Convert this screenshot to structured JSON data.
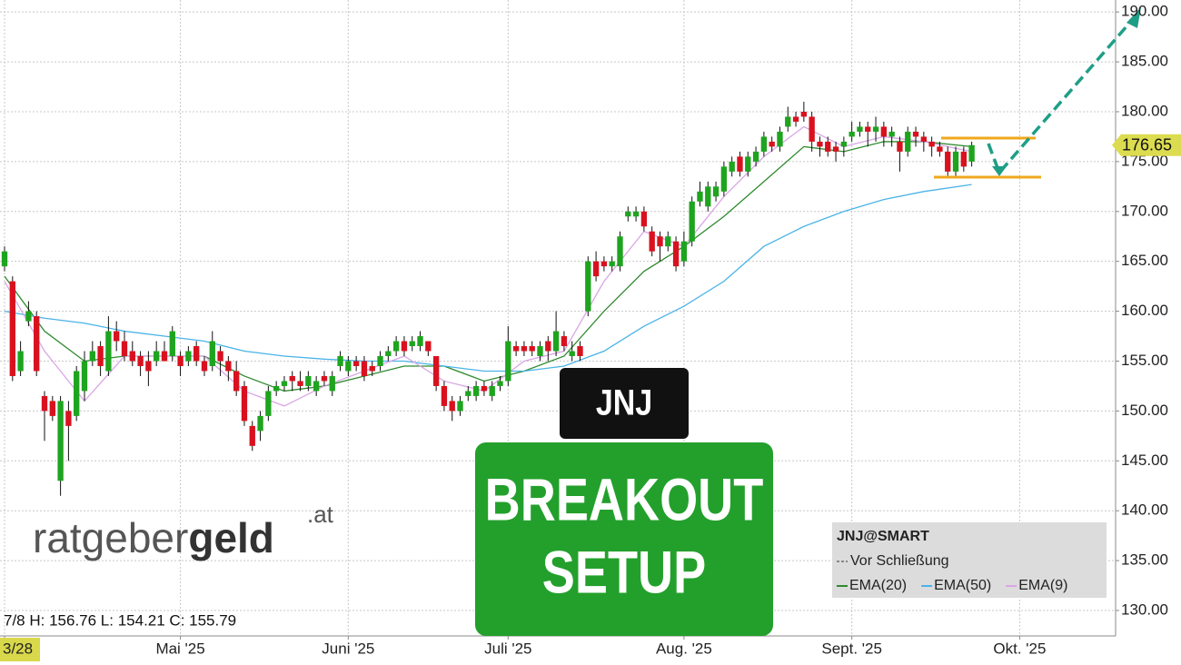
{
  "chart_data": {
    "type": "candlestick",
    "x": [
      0,
      1,
      2,
      3,
      4,
      5,
      6,
      7,
      8,
      9,
      10,
      11,
      12,
      13,
      14,
      15,
      16,
      17,
      18,
      19,
      20,
      21,
      22,
      23,
      24,
      25,
      26,
      27,
      28,
      29,
      30,
      31,
      32,
      33,
      34,
      35,
      36,
      37,
      38,
      39,
      40,
      41,
      42,
      43,
      44,
      45,
      46,
      47,
      48,
      49,
      50,
      51,
      52,
      53,
      54,
      55,
      56,
      57,
      58,
      59,
      60,
      61,
      62,
      63,
      64,
      65,
      66,
      67,
      68,
      69,
      70,
      71,
      72,
      73,
      74,
      75,
      76,
      77,
      78,
      79,
      80,
      81,
      82,
      83,
      84,
      85,
      86,
      87,
      88,
      89,
      90,
      91,
      92,
      93,
      94,
      95,
      96,
      97,
      98,
      99,
      100,
      101,
      102,
      103,
      104,
      105,
      106,
      107,
      108,
      109,
      110,
      111,
      112,
      113,
      114,
      115,
      116,
      117,
      118,
      119,
      120,
      121
    ],
    "open": [
      164.5,
      163,
      154,
      159,
      159.5,
      151.5,
      151,
      143,
      150,
      149.5,
      152,
      155,
      156.5,
      154,
      158,
      157,
      156,
      155.5,
      155,
      155,
      156,
      155.5,
      155.5,
      155,
      156.5,
      155,
      154.5,
      156,
      155,
      154,
      152.5,
      148.5,
      148,
      149.5,
      152,
      152.5,
      153.5,
      153,
      152.5,
      152,
      153.5,
      152,
      154.5,
      154,
      155,
      155,
      154.5,
      154.5,
      155.5,
      156,
      157,
      156.5,
      156.5,
      157,
      155.5,
      152.5,
      151,
      150,
      151.5,
      151.5,
      152.5,
      151.5,
      152.5,
      153,
      156.5,
      156.5,
      156.5,
      155.5,
      157,
      156,
      157.5,
      155.5,
      156.5,
      160,
      165,
      165,
      164.5,
      164.5,
      169.5,
      169.5,
      170,
      168,
      167.5,
      166.5,
      167,
      165,
      167,
      171,
      170.5,
      171.5,
      172,
      174,
      175.5,
      174,
      175,
      176,
      177,
      176.5,
      178.5,
      179.5,
      180,
      179.5,
      177,
      177,
      176.5,
      176.5,
      177.5,
      178,
      178.5,
      178,
      178.5,
      177.5,
      177,
      176,
      178,
      177.5,
      177,
      176.5,
      176,
      174,
      176,
      175
    ],
    "high": [
      166.5,
      163.5,
      157,
      161,
      160,
      152,
      151.5,
      151.5,
      151,
      154.5,
      156,
      157,
      157,
      159.5,
      159,
      158,
      157,
      156,
      156,
      157,
      157,
      158.5,
      156,
      156.5,
      157,
      155.5,
      158,
      156.5,
      155.5,
      155,
      153,
      149,
      150,
      152.5,
      153,
      153.5,
      154,
      154,
      154,
      153.5,
      154,
      154,
      156,
      155.5,
      155.5,
      155.5,
      155,
      156,
      156.5,
      157.5,
      157.5,
      157.5,
      158,
      157,
      155.5,
      153,
      151.5,
      151.5,
      152.5,
      153,
      153,
      153,
      153.5,
      158.5,
      157,
      157,
      157,
      157,
      157.5,
      160,
      158,
      157,
      157,
      165.5,
      166,
      165.5,
      165.5,
      168,
      170.5,
      170.5,
      170.5,
      168.5,
      168,
      168,
      167.5,
      168,
      171.5,
      173,
      173,
      173,
      175,
      175.5,
      176,
      176,
      176.5,
      178,
      177.5,
      178.5,
      180.5,
      180,
      181,
      180,
      177.5,
      177.5,
      177,
      177.5,
      179,
      179,
      179,
      179.5,
      179,
      178.5,
      177.5,
      178.5,
      178.5,
      178,
      177.5,
      177,
      176.5,
      176.5,
      176.5,
      177
    ],
    "low": [
      164,
      153,
      153.5,
      158.5,
      153.5,
      147,
      149,
      141.5,
      145,
      149,
      151,
      154.5,
      153.5,
      153.5,
      156,
      155,
      154.5,
      153.5,
      152.5,
      154.5,
      155,
      155,
      153.5,
      154.5,
      154.5,
      153.5,
      154,
      153.5,
      153,
      151.5,
      148.5,
      146,
      147,
      149,
      151.5,
      152,
      152,
      152,
      152,
      151.5,
      152.5,
      151.5,
      154,
      153.5,
      154,
      153,
      153.5,
      154,
      155,
      155.5,
      155.5,
      156,
      156,
      155.5,
      152,
      150,
      149,
      149.5,
      151,
      151,
      151.5,
      151,
      152,
      152.5,
      155.5,
      155.5,
      155.5,
      155,
      155,
      155.5,
      156,
      155,
      155,
      159.5,
      163,
      164,
      164,
      164,
      169,
      169,
      168,
      165.5,
      165,
      166,
      164,
      164.5,
      166.5,
      170.5,
      170,
      171,
      171.5,
      173.5,
      173.5,
      173.5,
      174.5,
      175.5,
      176,
      176,
      178,
      178.5,
      179,
      176,
      175.5,
      175.5,
      175,
      175.5,
      177,
      177.5,
      176.5,
      177,
      176.5,
      176.5,
      174,
      175.5,
      176.5,
      176,
      175.5,
      175.5,
      173.5,
      173.5,
      174,
      174.5
    ],
    "close": [
      166,
      153.5,
      156,
      160,
      154,
      150,
      149.5,
      151,
      148.5,
      154,
      155,
      156,
      154.5,
      158,
      157,
      155.5,
      155,
      154.5,
      154,
      156,
      155,
      158,
      154.5,
      156,
      155,
      154,
      157,
      155,
      154,
      152,
      149,
      146.5,
      149.5,
      152,
      152.5,
      153,
      153,
      152.5,
      153.5,
      153,
      153,
      153.5,
      155.5,
      155,
      154.5,
      153.5,
      154,
      155.5,
      156,
      157,
      156,
      157,
      157.5,
      156,
      152.5,
      150.5,
      150,
      151,
      152,
      152.5,
      152,
      152.5,
      153,
      157,
      156,
      156,
      156,
      156.5,
      156,
      158,
      156.5,
      156,
      155.5,
      165,
      163.5,
      164.5,
      165,
      167.5,
      170,
      170,
      168.5,
      166,
      166.5,
      167.5,
      164.5,
      167,
      171,
      172,
      172.5,
      172.5,
      174.5,
      175,
      174,
      175.5,
      176,
      177.5,
      176.5,
      178,
      179.5,
      179,
      179.5,
      177,
      176.5,
      176,
      176,
      177,
      178,
      178.5,
      178,
      178.5,
      177.5,
      178,
      176,
      178,
      177.5,
      177,
      176.5,
      176,
      174,
      176,
      174.5,
      176.65
    ],
    "up_color": "#1ea41e",
    "down_color": "#d9111f",
    "series": [
      {
        "name": "EMA(20)",
        "color": "#2f8a2f",
        "x": [
          0,
          5,
          10,
          15,
          20,
          25,
          30,
          35,
          40,
          45,
          50,
          55,
          60,
          65,
          70,
          75,
          80,
          85,
          90,
          95,
          100,
          105,
          110,
          115,
          121
        ],
        "values": [
          163.5,
          158,
          155,
          155.5,
          155.5,
          155.5,
          153.5,
          152,
          152.5,
          153.5,
          154.5,
          154.5,
          153,
          154,
          155.5,
          160,
          164,
          166.5,
          169.5,
          173,
          176.5,
          176,
          177,
          177,
          176.5
        ]
      },
      {
        "name": "EMA(50)",
        "color": "#4ab3e8",
        "x": [
          0,
          5,
          10,
          15,
          20,
          25,
          30,
          35,
          40,
          45,
          50,
          55,
          60,
          65,
          70,
          75,
          80,
          85,
          90,
          95,
          100,
          105,
          110,
          115,
          121
        ],
        "values": [
          160,
          159.3,
          158.8,
          158,
          157.5,
          157,
          156,
          155.5,
          155.2,
          155,
          155,
          154.5,
          154,
          154,
          154.5,
          156,
          158.5,
          160.5,
          163,
          166.5,
          168.5,
          170,
          171.2,
          172,
          172.7
        ]
      },
      {
        "name": "EMA(9)",
        "color": "#d9a6e6",
        "x": [
          0,
          5,
          10,
          15,
          20,
          25,
          30,
          35,
          40,
          45,
          50,
          55,
          60,
          65,
          70,
          75,
          80,
          85,
          90,
          95,
          100,
          105,
          110,
          115,
          121
        ],
        "values": [
          163,
          156,
          151,
          155.5,
          155.5,
          155.5,
          152,
          150.5,
          152.5,
          154,
          155.5,
          153,
          152,
          155,
          156,
          163,
          168,
          166.5,
          171.5,
          175.5,
          178.5,
          176.5,
          177.5,
          177,
          176
        ]
      }
    ],
    "xlim": [
      -0.57,
      139
    ],
    "ylim": [
      127.45,
      191.2
    ],
    "xticks": [
      {
        "value": 0,
        "label": "3/28"
      },
      {
        "value": 22,
        "label": "Mai '25"
      },
      {
        "value": 43,
        "label": "Juni '25"
      },
      {
        "value": 63,
        "label": "Juli '25"
      },
      {
        "value": 85,
        "label": "Aug. '25"
      },
      {
        "value": 106,
        "label": "Sept. '25"
      },
      {
        "value": 127,
        "label": "Okt. '25"
      }
    ],
    "yticks": [
      {
        "value": 130,
        "label": "130.00"
      },
      {
        "value": 135,
        "label": "135.00"
      },
      {
        "value": 140,
        "label": "140.00"
      },
      {
        "value": 145,
        "label": "145.00"
      },
      {
        "value": 150,
        "label": "150.00"
      },
      {
        "value": 155,
        "label": "155.00"
      },
      {
        "value": 160,
        "label": "160.00"
      },
      {
        "value": 165,
        "label": "165.00"
      },
      {
        "value": 170,
        "label": "170.00"
      },
      {
        "value": 175,
        "label": "175.00"
      },
      {
        "value": 180,
        "label": "180.00"
      },
      {
        "value": 185,
        "label": "185.00"
      },
      {
        "value": 190,
        "label": "190.00"
      }
    ],
    "grid": true,
    "last_price": 176.65,
    "info": "7/8 H: 156.76 L: 154.21 C: 155.79",
    "legend_title": "JNJ@SMART",
    "legend_subtitle": "Vor Schließung",
    "badge": "JNJ",
    "headline": [
      "BREAKOUT",
      "SETUP"
    ],
    "logo": {
      "light": "ratgeber",
      "bold": "geld",
      "suffix": ".at"
    }
  }
}
